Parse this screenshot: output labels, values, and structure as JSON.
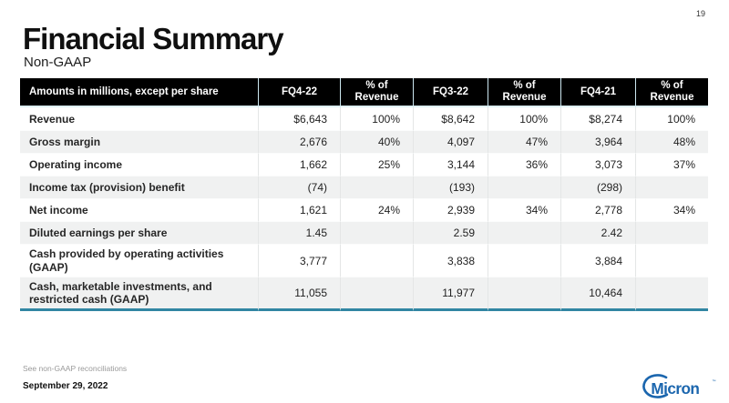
{
  "slide": {
    "page_number": "19",
    "title": "Financial Summary",
    "subtitle": "Non-GAAP"
  },
  "table": {
    "header": [
      "Amounts in millions, except per share",
      "FQ4-22",
      "% of Revenue",
      "FQ3-22",
      "% of Revenue",
      "FQ4-21",
      "% of Revenue"
    ],
    "rows": [
      {
        "label": "Revenue",
        "values": [
          "$6,643",
          "100%",
          "$8,642",
          "100%",
          "$8,274",
          "100%"
        ]
      },
      {
        "label": "Gross margin",
        "values": [
          "2,676",
          "40%",
          "4,097",
          "47%",
          "3,964",
          "48%"
        ]
      },
      {
        "label": "Operating income",
        "values": [
          "1,662",
          "25%",
          "3,144",
          "36%",
          "3,073",
          "37%"
        ]
      },
      {
        "label": "Income tax (provision) benefit",
        "values": [
          "(74)",
          "",
          "(193)",
          "",
          "(298)",
          ""
        ]
      },
      {
        "label": "Net income",
        "values": [
          "1,621",
          "24%",
          "2,939",
          "34%",
          "2,778",
          "34%"
        ]
      },
      {
        "label": "Diluted earnings per share",
        "values": [
          "1.45",
          "",
          "2.59",
          "",
          "2.42",
          ""
        ]
      },
      {
        "label": "Cash provided by operating activities (GAAP)",
        "values": [
          "3,777",
          "",
          "3,838",
          "",
          "3,884",
          ""
        ]
      },
      {
        "label": "Cash, marketable investments, and restricted cash (GAAP)",
        "values": [
          "11,055",
          "",
          "11,977",
          "",
          "10,464",
          ""
        ]
      }
    ]
  },
  "footer": {
    "footnote": "See non-GAAP reconciliations",
    "date": "September 29, 2022",
    "logo_text": "Micron",
    "logo_mark": "™"
  },
  "colors": {
    "header_bg": "#000000",
    "row_stripe": "#F0F1F1",
    "table_accent_line": "#3186A3",
    "logo_blue": "#1B66AE"
  }
}
